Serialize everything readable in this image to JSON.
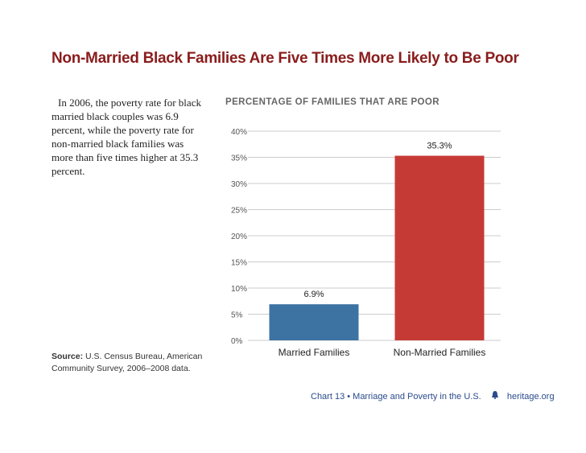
{
  "title": "Non-Married Black Families Are Five Times More Likely to Be Poor",
  "description": "In 2006, the poverty rate for black married black couples was 6.9 percent, while the poverty rate for non-married black families was more than five times higher at 35.3 percent.",
  "source": {
    "label": "Source:",
    "text": "U.S. Census Bureau, American Community Survey, 2006–2008 data."
  },
  "footer": {
    "chart_label": "Chart 13 • Marriage and Poverty in the U.S.",
    "icon": "liberty-bell-icon",
    "site": "heritage.org"
  },
  "colors": {
    "title": "#8a1c1c",
    "married": "#3d73a3",
    "non_married": "#c63a35",
    "grid": "#cccccc"
  },
  "chart_data": {
    "type": "bar",
    "title": "PERCENTAGE OF FAMILIES THAT ARE POOR",
    "categories": [
      "Married Families",
      "Non-Married Families"
    ],
    "values": [
      6.9,
      35.3
    ],
    "value_labels": [
      "6.9%",
      "35.3%"
    ],
    "yticks": [
      "0%",
      "5%",
      "10%",
      "15%",
      "20%",
      "25%",
      "30%",
      "35%",
      "40%"
    ],
    "ylim": [
      0,
      40
    ],
    "xlabel": "",
    "ylabel": "",
    "grid": true
  }
}
